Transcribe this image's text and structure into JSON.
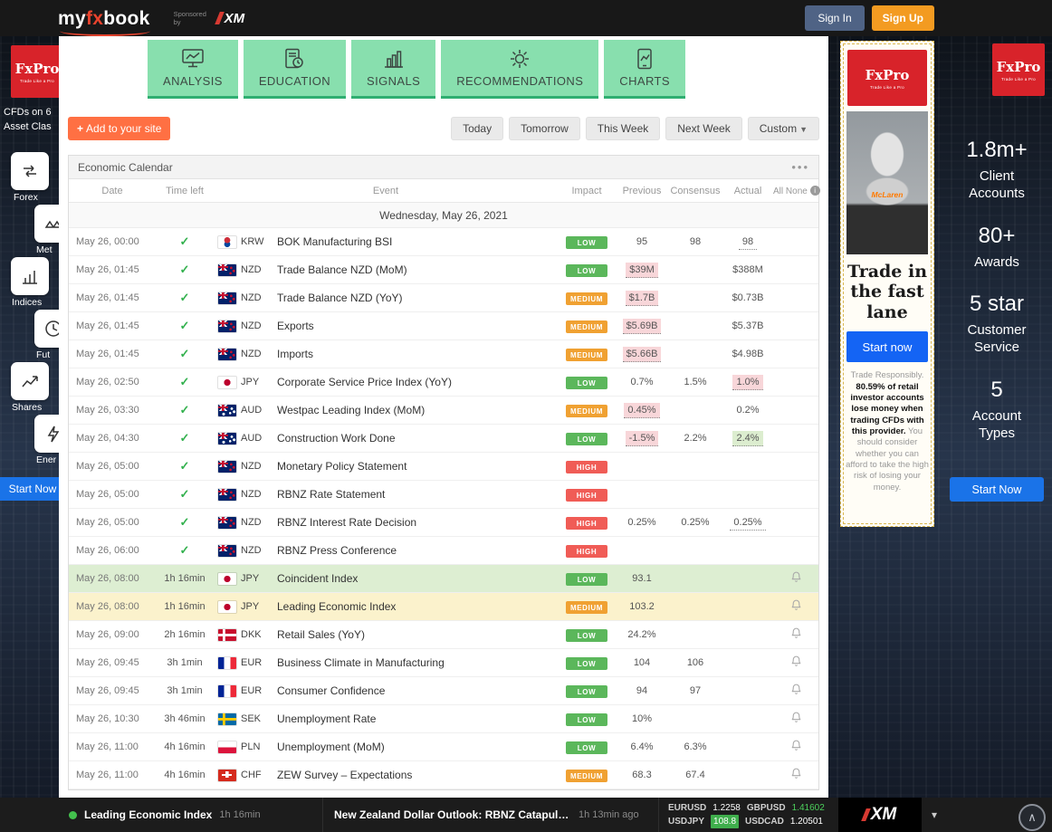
{
  "topbar": {
    "logo_my": "my",
    "logo_fx": "fx",
    "logo_book": "book",
    "sponsored_by": "Sponsored by",
    "sponsor": "XM",
    "sign_in": "Sign In",
    "sign_up": "Sign Up"
  },
  "left_rail": {
    "logo": "FxPro",
    "logo_tagline": "Trade Like a Pro",
    "ad_line1": "CFDs on 6",
    "ad_line2": "Asset Clas",
    "items": [
      {
        "label": "Forex"
      },
      {
        "label": "Met"
      },
      {
        "label": "Indices"
      },
      {
        "label": "Fut"
      },
      {
        "label": "Shares"
      },
      {
        "label": "Ener"
      }
    ],
    "cta": "Start Now"
  },
  "tabs": [
    {
      "label": "ANALYSIS"
    },
    {
      "label": "EDUCATION"
    },
    {
      "label": "SIGNALS"
    },
    {
      "label": "RECOMMENDATIONS"
    },
    {
      "label": "CHARTS"
    }
  ],
  "toolbar": {
    "add_button": "Add to your site",
    "filters": [
      {
        "label": "Today"
      },
      {
        "label": "Tomorrow"
      },
      {
        "label": "This Week"
      },
      {
        "label": "Next Week"
      },
      {
        "label": "Custom"
      }
    ]
  },
  "calendar": {
    "title": "Economic Calendar",
    "columns": {
      "date": "Date",
      "time_left": "Time left",
      "event": "Event",
      "impact": "Impact",
      "previous": "Previous",
      "consensus": "Consensus",
      "actual": "Actual",
      "all": "All",
      "none": "None"
    },
    "day_header": "Wednesday, May 26, 2021",
    "rows": [
      {
        "date": "May 26, 00:00",
        "status": "done",
        "flag": "kr",
        "currency": "KRW",
        "event": "BOK Manufacturing BSI",
        "impact": "LOW",
        "previous": "95",
        "consensus": "98",
        "actual": "98",
        "actual_style": "link"
      },
      {
        "date": "May 26, 01:45",
        "status": "done",
        "flag": "nz",
        "currency": "NZD",
        "event": "Trade Balance NZD (MoM)",
        "impact": "LOW",
        "previous": "$39M",
        "previous_style": "revised",
        "consensus": "",
        "actual": "$388M"
      },
      {
        "date": "May 26, 01:45",
        "status": "done",
        "flag": "nz",
        "currency": "NZD",
        "event": "Trade Balance NZD (YoY)",
        "impact": "MEDIUM",
        "previous": "$1.7B",
        "previous_style": "revised",
        "consensus": "",
        "actual": "$0.73B"
      },
      {
        "date": "May 26, 01:45",
        "status": "done",
        "flag": "nz",
        "currency": "NZD",
        "event": "Exports",
        "impact": "MEDIUM",
        "previous": "$5.69B",
        "previous_style": "revised",
        "consensus": "",
        "actual": "$5.37B"
      },
      {
        "date": "May 26, 01:45",
        "status": "done",
        "flag": "nz",
        "currency": "NZD",
        "event": "Imports",
        "impact": "MEDIUM",
        "previous": "$5.66B",
        "previous_style": "revised",
        "consensus": "",
        "actual": "$4.98B"
      },
      {
        "date": "May 26, 02:50",
        "status": "done",
        "flag": "jp",
        "currency": "JPY",
        "event": "Corporate Service Price Index (YoY)",
        "impact": "LOW",
        "previous": "0.7%",
        "consensus": "1.5%",
        "actual": "1.0%",
        "actual_style": "worse"
      },
      {
        "date": "May 26, 03:30",
        "status": "done",
        "flag": "au",
        "currency": "AUD",
        "event": "Westpac Leading Index (MoM)",
        "impact": "MEDIUM",
        "previous": "0.45%",
        "previous_style": "revised",
        "consensus": "",
        "actual": "0.2%"
      },
      {
        "date": "May 26, 04:30",
        "status": "done",
        "flag": "au",
        "currency": "AUD",
        "event": "Construction Work Done",
        "impact": "LOW",
        "previous": "-1.5%",
        "previous_style": "revised",
        "consensus": "2.2%",
        "actual": "2.4%",
        "actual_style": "better"
      },
      {
        "date": "May 26, 05:00",
        "status": "done",
        "flag": "nz",
        "currency": "NZD",
        "event": "Monetary Policy Statement",
        "impact": "HIGH",
        "previous": "",
        "consensus": "",
        "actual": ""
      },
      {
        "date": "May 26, 05:00",
        "status": "done",
        "flag": "nz",
        "currency": "NZD",
        "event": "RBNZ Rate Statement",
        "impact": "HIGH",
        "previous": "",
        "consensus": "",
        "actual": ""
      },
      {
        "date": "May 26, 05:00",
        "status": "done",
        "flag": "nz",
        "currency": "NZD",
        "event": "RBNZ Interest Rate Decision",
        "impact": "HIGH",
        "previous": "0.25%",
        "consensus": "0.25%",
        "actual": "0.25%",
        "actual_style": "link"
      },
      {
        "date": "May 26, 06:00",
        "status": "done",
        "flag": "nz",
        "currency": "NZD",
        "event": "RBNZ Press Conference",
        "impact": "HIGH",
        "previous": "",
        "consensus": "",
        "actual": ""
      },
      {
        "date": "May 26, 08:00",
        "status": "upcoming",
        "time_left": "1h 16min",
        "flag": "jp",
        "currency": "JPY",
        "event": "Coincident Index",
        "impact": "LOW",
        "previous": "93.1",
        "consensus": "",
        "actual": "",
        "row_highlight": "green",
        "has_bell": true
      },
      {
        "date": "May 26, 08:00",
        "status": "upcoming",
        "time_left": "1h 16min",
        "flag": "jp",
        "currency": "JPY",
        "event": "Leading Economic Index",
        "impact": "MEDIUM",
        "previous": "103.2",
        "consensus": "",
        "actual": "",
        "row_highlight": "yellow",
        "has_bell": true
      },
      {
        "date": "May 26, 09:00",
        "status": "upcoming",
        "time_left": "2h 16min",
        "flag": "dk",
        "currency": "DKK",
        "event": "Retail Sales (YoY)",
        "impact": "LOW",
        "previous": "24.2%",
        "consensus": "",
        "actual": "",
        "has_bell": true
      },
      {
        "date": "May 26, 09:45",
        "status": "upcoming",
        "time_left": "3h 1min",
        "flag": "fr",
        "currency": "EUR",
        "event": "Business Climate in Manufacturing",
        "impact": "LOW",
        "previous": "104",
        "consensus": "106",
        "actual": "",
        "has_bell": true
      },
      {
        "date": "May 26, 09:45",
        "status": "upcoming",
        "time_left": "3h 1min",
        "flag": "fr",
        "currency": "EUR",
        "event": "Consumer Confidence",
        "impact": "LOW",
        "previous": "94",
        "consensus": "97",
        "actual": "",
        "has_bell": true
      },
      {
        "date": "May 26, 10:30",
        "status": "upcoming",
        "time_left": "3h 46min",
        "flag": "se",
        "currency": "SEK",
        "event": "Unemployment Rate",
        "impact": "LOW",
        "previous": "10%",
        "consensus": "",
        "actual": "",
        "has_bell": true
      },
      {
        "date": "May 26, 11:00",
        "status": "upcoming",
        "time_left": "4h 16min",
        "flag": "pl",
        "currency": "PLN",
        "event": "Unemployment (MoM)",
        "impact": "LOW",
        "previous": "6.4%",
        "consensus": "6.3%",
        "actual": "",
        "has_bell": true
      },
      {
        "date": "May 26, 11:00",
        "status": "upcoming",
        "time_left": "4h 16min",
        "flag": "ch",
        "currency": "CHF",
        "event": "ZEW Survey – Expectations",
        "impact": "MEDIUM",
        "previous": "68.3",
        "consensus": "67.4",
        "actual": "",
        "has_bell": true
      }
    ]
  },
  "center_ad": {
    "logo": "FxPro",
    "logo_tagline": "Trade Like a Pro",
    "image_text": "McLaren",
    "headline": "Trade in the fast lane",
    "cta": "Start now",
    "disclaimer_intro": "Trade Responsibly.",
    "disclaimer_bold": "80.59% of retail investor accounts lose money when trading CFDs with this provider.",
    "disclaimer_rest": "You should consider whether you can afford to take the high risk of losing your money."
  },
  "right_rail": {
    "logo": "FxPro",
    "logo_tagline": "Trade Like a Pro",
    "stats": [
      {
        "value": "1.8m+",
        "label": "Client Accounts"
      },
      {
        "value": "80+",
        "label": "Awards"
      },
      {
        "value": "5 star",
        "label": "Customer Service"
      },
      {
        "value": "5",
        "label": "Account Types"
      }
    ],
    "cta": "Start Now"
  },
  "footer": {
    "live_event": {
      "name": "Leading Economic Index",
      "time_left": "1h 16min"
    },
    "news": {
      "title": "New Zealand Dollar Outlook: RBNZ Catapults NZD/USD …",
      "time": "1h 13min ago"
    },
    "ticker": [
      {
        "symbol": "EURUSD",
        "value": "1.2258",
        "style": "plain"
      },
      {
        "symbol": "GBPUSD",
        "value": "1.41602",
        "style": "green-text"
      },
      {
        "symbol": "USDJPY",
        "value": "108.8",
        "style": "green-bg"
      },
      {
        "symbol": "USDCAD",
        "value": "1.20501",
        "style": "plain"
      }
    ],
    "sponsor": "XM"
  },
  "colors": {
    "tab_green": "#88dfae",
    "impact_low": "#5bb75b",
    "impact_medium": "#f0a132",
    "impact_high": "#f05c56",
    "revised_pink": "#f8d6d9",
    "better_green": "#dcedcf",
    "row_highlight_green": "#ddeed2",
    "row_highlight_yellow": "#fbf2cc",
    "add_button_orange": "#ff7043",
    "signup_orange": "#f39b21",
    "cta_blue": "#1a73e8",
    "fxpro_red": "#d8232a",
    "ticker_green": "#3fae4c"
  }
}
